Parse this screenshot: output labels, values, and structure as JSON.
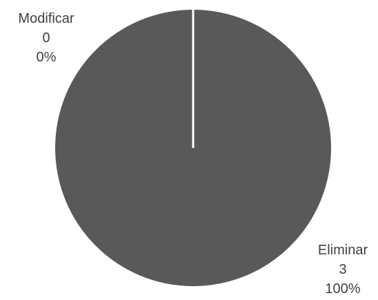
{
  "chart_data": {
    "type": "pie",
    "title": "",
    "categories": [
      "Modificar",
      "Eliminar"
    ],
    "values": [
      0,
      3
    ],
    "percent_labels": [
      "0%",
      "100%"
    ],
    "colors": {
      "slice": "#595959",
      "separator": "#ffffff",
      "label_text": "#404040"
    },
    "legend": "none",
    "start_angle_deg": 0
  }
}
